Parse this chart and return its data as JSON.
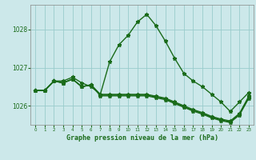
{
  "xlabel": "Graphe pression niveau de la mer (hPa)",
  "bg_color": "#cce8ea",
  "grid_color": "#99cccc",
  "line_color": "#1a6b1a",
  "x_hours": [
    0,
    1,
    2,
    3,
    4,
    5,
    6,
    7,
    8,
    9,
    10,
    11,
    12,
    13,
    14,
    15,
    16,
    17,
    18,
    19,
    20,
    21,
    22,
    23
  ],
  "series": [
    [
      1026.4,
      1026.4,
      1026.65,
      1026.65,
      1026.75,
      1026.6,
      1026.5,
      1026.3,
      1027.15,
      1027.6,
      1027.85,
      1028.2,
      1028.4,
      1028.1,
      1027.7,
      1027.25,
      1026.85,
      1026.65,
      1026.5,
      1026.3,
      1026.1,
      1025.85,
      1026.1,
      1026.35
    ],
    [
      1026.4,
      1026.4,
      1026.65,
      1026.6,
      1026.7,
      1026.5,
      1026.55,
      1026.3,
      1026.3,
      1026.3,
      1026.3,
      1026.3,
      1026.3,
      1026.25,
      1026.2,
      1026.1,
      1026.0,
      1025.9,
      1025.82,
      1025.72,
      1025.65,
      1025.6,
      1025.8,
      1026.25
    ],
    [
      1026.4,
      1026.4,
      1026.65,
      1026.6,
      1026.7,
      1026.5,
      1026.55,
      1026.28,
      1026.28,
      1026.28,
      1026.28,
      1026.28,
      1026.28,
      1026.23,
      1026.18,
      1026.08,
      1025.98,
      1025.88,
      1025.8,
      1025.7,
      1025.63,
      1025.58,
      1025.78,
      1026.22
    ],
    [
      1026.4,
      1026.4,
      1026.65,
      1026.6,
      1026.7,
      1026.5,
      1026.55,
      1026.26,
      1026.26,
      1026.26,
      1026.26,
      1026.26,
      1026.26,
      1026.21,
      1026.16,
      1026.06,
      1025.96,
      1025.86,
      1025.78,
      1025.68,
      1025.61,
      1025.56,
      1025.76,
      1026.2
    ]
  ],
  "ylim": [
    1025.5,
    1028.65
  ],
  "yticks": [
    1026,
    1027,
    1028
  ],
  "marker": "*",
  "markersize": 3.5,
  "linewidth": 1.0
}
